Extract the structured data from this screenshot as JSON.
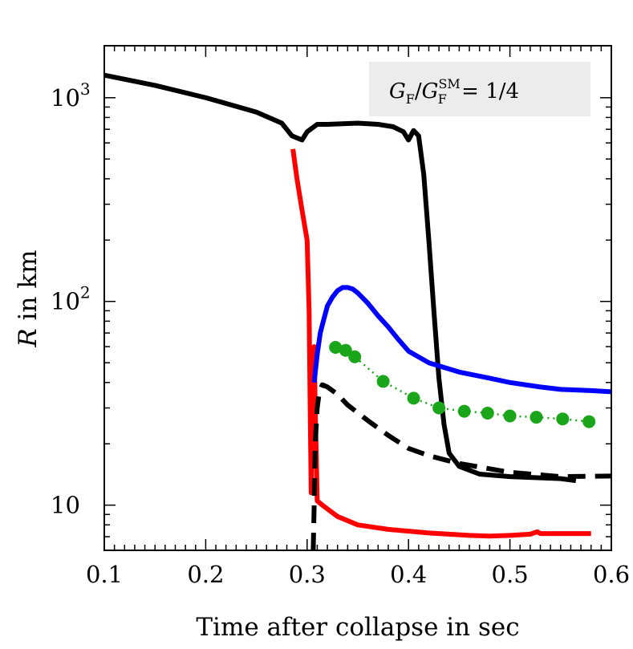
{
  "chart_data": {
    "type": "line",
    "xlabel": "Time after collapse in sec",
    "ylabel_italic": "R",
    "ylabel_rest": " in km",
    "xlim": [
      0.1,
      0.6
    ],
    "ylim": [
      6,
      1800
    ],
    "yscale": "log",
    "x_ticks": [
      "0.1",
      "0.2",
      "0.3",
      "0.4",
      "0.5",
      "0.6"
    ],
    "y_ticks": [
      {
        "base": "10",
        "exp": "3",
        "value": 1000
      },
      {
        "base": "10",
        "exp": "2",
        "value": 100
      },
      {
        "base": "10",
        "exp": "",
        "value": 10
      }
    ],
    "annotation": {
      "G": "G",
      "sub": "F",
      "slash": "/",
      "sup": "SM",
      "rhs": " = 1/4"
    },
    "grid": false,
    "colors": {
      "black": "#000000",
      "red": "#ff0000",
      "blue": "#0000ff",
      "green": "#1aa51a",
      "annot_bg": "#ececec"
    },
    "series": [
      {
        "style": "solid",
        "color": "black",
        "x": [
          0.1,
          0.15,
          0.2,
          0.25,
          0.275,
          0.285,
          0.295,
          0.3,
          0.31,
          0.32,
          0.35,
          0.37,
          0.385,
          0.395,
          0.4,
          0.405,
          0.41,
          0.415,
          0.42,
          0.425,
          0.43,
          0.435,
          0.44,
          0.45,
          0.47,
          0.5,
          0.55,
          0.565
        ],
        "y": [
          1290,
          1150,
          1000,
          850,
          750,
          650,
          620,
          680,
          740,
          740,
          750,
          740,
          720,
          680,
          620,
          690,
          650,
          420,
          200,
          90,
          42,
          25,
          18,
          15.5,
          14.2,
          13.8,
          13.5,
          13.2
        ]
      },
      {
        "style": "solid",
        "color": "red",
        "x": [
          0.286,
          0.29,
          0.295,
          0.3,
          0.302,
          0.303,
          0.304,
          0.305,
          0.306,
          0.307,
          0.308,
          0.31,
          0.315,
          0.33,
          0.35,
          0.38,
          0.42,
          0.46,
          0.48,
          0.5,
          0.52,
          0.527,
          0.53,
          0.54,
          0.58
        ],
        "y": [
          560,
          400,
          280,
          200,
          90,
          30,
          11.5,
          35,
          55,
          60,
          30,
          10.5,
          10.0,
          8.8,
          8.0,
          7.6,
          7.3,
          7.1,
          7.05,
          7.1,
          7.2,
          7.4,
          7.25,
          7.25,
          7.25
        ]
      },
      {
        "style": "solid",
        "color": "blue",
        "x": [
          0.307,
          0.31,
          0.313,
          0.316,
          0.32,
          0.325,
          0.33,
          0.335,
          0.34,
          0.345,
          0.35,
          0.36,
          0.37,
          0.38,
          0.39,
          0.4,
          0.42,
          0.45,
          0.48,
          0.5,
          0.53,
          0.55,
          0.58,
          0.6
        ],
        "y": [
          40,
          55,
          70,
          80,
          95,
          105,
          113,
          117,
          117,
          115,
          110,
          98,
          85,
          75,
          65,
          57,
          50,
          45,
          42,
          40,
          38,
          37,
          36.5,
          36
        ]
      },
      {
        "style": "dashed",
        "color": "black",
        "x": [
          0.306,
          0.307,
          0.308,
          0.31,
          0.312,
          0.315,
          0.32,
          0.33,
          0.34,
          0.36,
          0.38,
          0.4,
          0.42,
          0.45,
          0.5,
          0.55,
          0.6
        ],
        "y": [
          6,
          10,
          20,
          30,
          36,
          39,
          38,
          35,
          31,
          26,
          22,
          19,
          17.5,
          16,
          14.5,
          13.8,
          13.9
        ]
      },
      {
        "style": "dotted-markers",
        "color": "green",
        "x": [
          0.328,
          0.338,
          0.347,
          0.375,
          0.405,
          0.43,
          0.455,
          0.478,
          0.5,
          0.526,
          0.552,
          0.578
        ],
        "y": [
          59.5,
          57.5,
          53.5,
          40.5,
          33.5,
          30,
          28.9,
          28.3,
          27.4,
          27,
          26.5,
          25.7
        ]
      }
    ]
  }
}
